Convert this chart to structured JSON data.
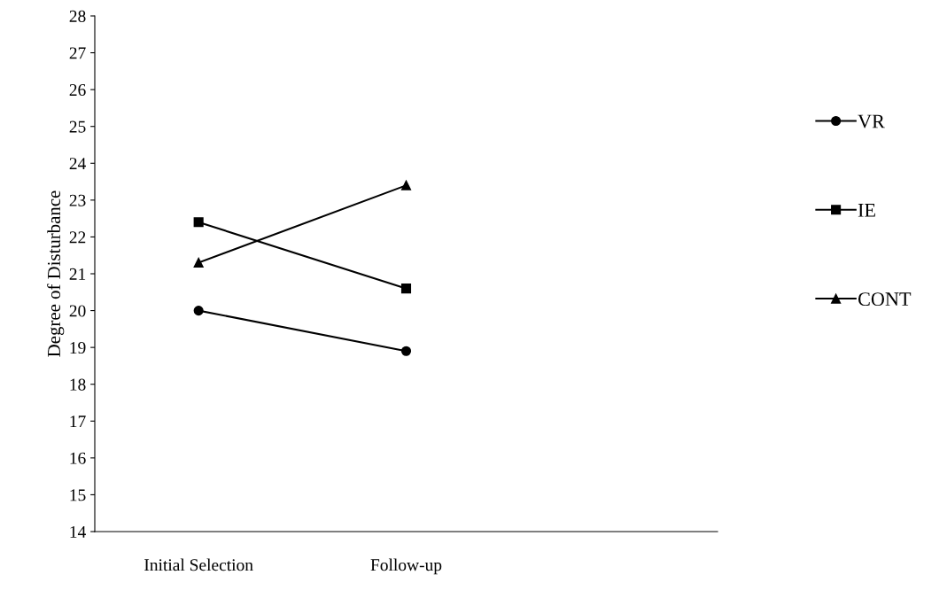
{
  "chart_data": {
    "type": "line",
    "ylabel": "Degree of Disturbance",
    "categories": [
      "Initial Selection",
      "Follow-up",
      null
    ],
    "series": [
      {
        "name": "VR",
        "color": "#000000",
        "marker": "circle",
        "values": [
          20.0,
          18.9,
          null
        ]
      },
      {
        "name": "IE",
        "color": "#000000",
        "marker": "square",
        "values": [
          22.4,
          20.6,
          null
        ]
      },
      {
        "name": "CONT",
        "color": "#000000",
        "marker": "triangle",
        "values": [
          21.3,
          23.4,
          null
        ]
      }
    ],
    "ylim": [
      14,
      28
    ],
    "yticks": [
      14,
      15,
      16,
      17,
      18,
      19,
      20,
      21,
      22,
      23,
      24,
      25,
      26,
      27,
      28
    ],
    "grid": false,
    "legend": "right",
    "line_style": "solid"
  }
}
